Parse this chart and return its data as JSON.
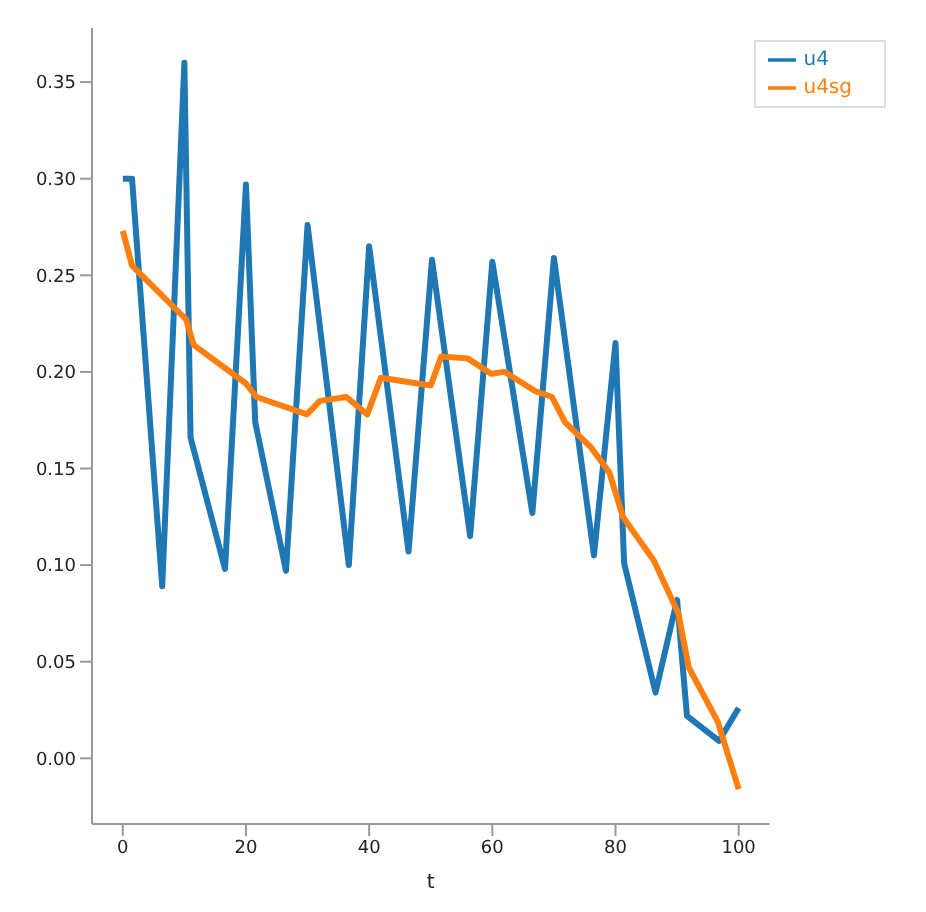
{
  "chart_data": {
    "type": "line",
    "xlabel": "t",
    "xlim": [
      -5,
      105
    ],
    "xticks": [
      0,
      20,
      40,
      60,
      80,
      100
    ],
    "ylim": [
      -0.034,
      0.378
    ],
    "yticks": [
      {
        "value": 0,
        "label": "0.00"
      },
      {
        "value": 0.05,
        "label": "0.05"
      },
      {
        "value": 0.1,
        "label": "0.10"
      },
      {
        "value": 0.15,
        "label": "0.15"
      },
      {
        "value": 0.2,
        "label": "0.20"
      },
      {
        "value": 0.25,
        "label": "0.25"
      },
      {
        "value": 0.3,
        "label": "0.30"
      },
      {
        "value": 0.35,
        "label": "0.35"
      }
    ],
    "grid": false,
    "legend": "top right",
    "marker": "none",
    "line_style": "solid",
    "series": [
      {
        "name": "u4",
        "color": "#1f77b4",
        "x": [
          0,
          1.5,
          6.4,
          10,
          11,
          16.6,
          20,
          21.5,
          26.5,
          30,
          36.7,
          40,
          46.4,
          50.2,
          56.4,
          60,
          66.5,
          70,
          76.5,
          80,
          81.4,
          86.5,
          90,
          91.6,
          96.8,
          100
        ],
        "values": [
          0.3,
          0.3,
          0.089,
          0.36,
          0.166,
          0.098,
          0.297,
          0.174,
          0.097,
          0.276,
          0.1,
          0.265,
          0.107,
          0.258,
          0.115,
          0.257,
          0.127,
          0.259,
          0.105,
          0.215,
          0.101,
          0.034,
          0.082,
          0.022,
          0.009,
          0.026
        ]
      },
      {
        "name": "u4sg",
        "color": "#ff7f0e",
        "x": [
          0,
          1.5,
          10.3,
          11.5,
          20,
          21.7,
          29.9,
          32,
          36.3,
          39.7,
          41.9,
          50,
          51.7,
          56,
          59.8,
          62,
          67,
          69.7,
          71.8,
          76,
          79,
          81.2,
          86.3,
          90.2,
          91.9,
          96.6,
          100
        ],
        "values": [
          0.273,
          0.255,
          0.227,
          0.214,
          0.194,
          0.187,
          0.178,
          0.185,
          0.187,
          0.178,
          0.197,
          0.193,
          0.208,
          0.207,
          0.199,
          0.2,
          0.19,
          0.187,
          0.174,
          0.161,
          0.148,
          0.125,
          0.102,
          0.075,
          0.047,
          0.019,
          -0.016
        ]
      }
    ]
  }
}
